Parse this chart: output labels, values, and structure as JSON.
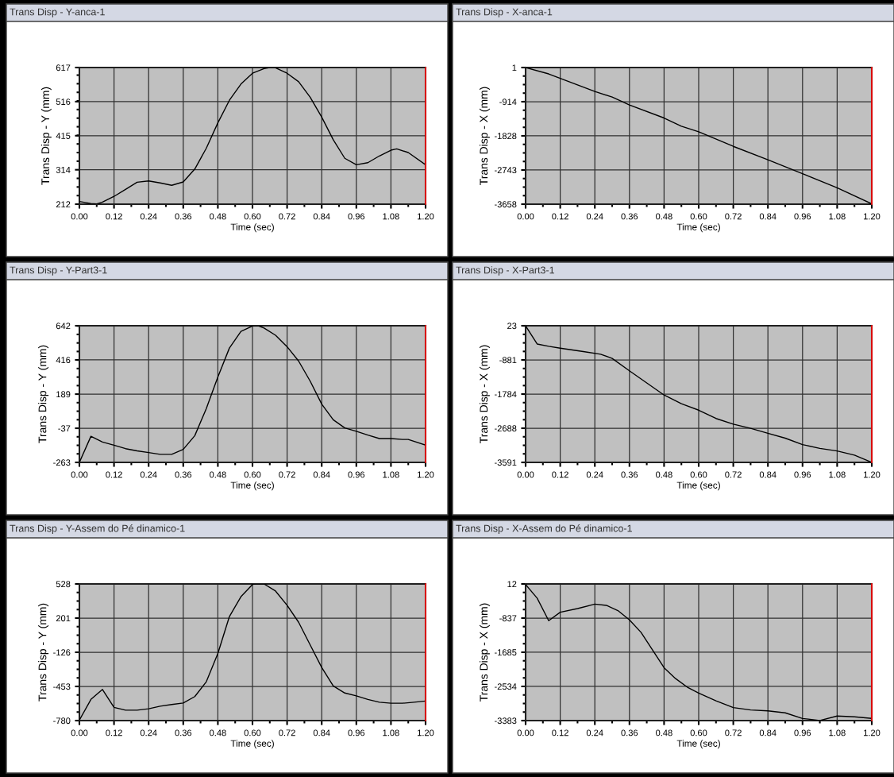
{
  "chart_data": [
    {
      "type": "line",
      "title": "Trans Disp - Y-anca-1",
      "xlabel": "Time (sec)",
      "ylabel": "Trans Disp - Y (mm)",
      "xlim": [
        0,
        1.2
      ],
      "ylim": [
        212,
        617
      ],
      "xticks": [
        {
          "value": 0,
          "label": "0.00"
        },
        0.12,
        0.24,
        0.36,
        0.48,
        {
          "value": 0.6,
          "label": "0.60"
        },
        0.72,
        0.84,
        0.96,
        1.08,
        {
          "value": 1.2,
          "label": "1.20"
        }
      ],
      "yticks": [
        212,
        314,
        415,
        516,
        617
      ],
      "grid": true,
      "ref_lines": [
        {
          "axis": "x",
          "value": 1.2,
          "color": "#ff0000"
        }
      ],
      "series": [
        {
          "color": "#000000",
          "x": [
            0,
            0.04,
            0.06,
            0.08,
            0.12,
            0.16,
            0.2,
            0.24,
            0.28,
            0.32,
            0.36,
            0.4,
            0.44,
            0.48,
            0.52,
            0.56,
            0.6,
            0.64,
            0.66,
            0.68,
            0.72,
            0.76,
            0.8,
            0.84,
            0.88,
            0.92,
            0.96,
            1.0,
            1.04,
            1.08,
            1.1,
            1.14,
            1.2
          ],
          "values": [
            220,
            214,
            213,
            218,
            235,
            256,
            277,
            281,
            275,
            268,
            278,
            316,
            378,
            453,
            520,
            568,
            600,
            614,
            617,
            616,
            600,
            575,
            529,
            470,
            403,
            348,
            329,
            335,
            355,
            372,
            376,
            365,
            329
          ]
        }
      ]
    },
    {
      "type": "line",
      "title": "Trans Disp - X-anca-1",
      "xlabel": "Time (sec)",
      "ylabel": "Trans Disp - X (mm)",
      "xlim": [
        0,
        1.2
      ],
      "ylim": [
        -3658,
        1
      ],
      "xticks": [
        {
          "value": 0,
          "label": "0.00"
        },
        0.12,
        0.24,
        0.36,
        0.48,
        {
          "value": 0.6,
          "label": "0.60"
        },
        0.72,
        0.84,
        0.96,
        1.08,
        {
          "value": 1.2,
          "label": "1.20"
        }
      ],
      "yticks": [
        -3658,
        -2743,
        -1828,
        -914,
        1
      ],
      "grid": true,
      "ref_lines": [
        {
          "axis": "x",
          "value": 1.2,
          "color": "#ff0000"
        }
      ],
      "series": [
        {
          "color": "#000000",
          "x": [
            0,
            0.08,
            0.12,
            0.24,
            0.3,
            0.36,
            0.48,
            0.54,
            0.6,
            0.72,
            0.84,
            0.96,
            1.08,
            1.2
          ],
          "values": [
            0,
            -170,
            -290,
            -640,
            -790,
            -1000,
            -1350,
            -1570,
            -1720,
            -2110,
            -2470,
            -2840,
            -3220,
            -3650
          ]
        }
      ]
    },
    {
      "type": "line",
      "title": "Trans Disp - Y-Part3-1",
      "xlabel": "Time (sec)",
      "ylabel": "Trans Disp - Y (mm)",
      "xlim": [
        0,
        1.2
      ],
      "ylim": [
        -263,
        642
      ],
      "xticks": [
        {
          "value": 0,
          "label": "0.00"
        },
        0.12,
        0.24,
        0.36,
        0.48,
        {
          "value": 0.6,
          "label": "0.60"
        },
        0.72,
        0.84,
        0.96,
        1.08,
        {
          "value": 1.2,
          "label": "1.20"
        }
      ],
      "yticks": [
        -263,
        -37,
        189,
        416,
        642
      ],
      "grid": true,
      "ref_lines": [
        {
          "axis": "x",
          "value": 1.2,
          "color": "#ff0000"
        }
      ],
      "series": [
        {
          "color": "#000000",
          "x": [
            0,
            0.04,
            0.08,
            0.12,
            0.16,
            0.2,
            0.24,
            0.28,
            0.32,
            0.36,
            0.4,
            0.44,
            0.48,
            0.52,
            0.56,
            0.6,
            0.62,
            0.64,
            0.68,
            0.72,
            0.76,
            0.8,
            0.84,
            0.88,
            0.92,
            0.96,
            1.0,
            1.04,
            1.08,
            1.12,
            1.14,
            1.2
          ],
          "values": [
            -263,
            -90,
            -128,
            -149,
            -172,
            -187,
            -198,
            -210,
            -210,
            -177,
            -86,
            94,
            303,
            494,
            604,
            640,
            642,
            627,
            579,
            503,
            408,
            275,
            123,
            19,
            -35,
            -57,
            -82,
            -105,
            -105,
            -111,
            -111,
            -149
          ]
        }
      ]
    },
    {
      "type": "line",
      "title": "Trans Disp - X-Part3-1",
      "xlabel": "Time (sec)",
      "ylabel": "Trans Disp - X (mm)",
      "xlim": [
        0,
        1.2
      ],
      "ylim": [
        -3591,
        23
      ],
      "xticks": [
        {
          "value": 0,
          "label": "0.00"
        },
        0.12,
        0.24,
        0.36,
        0.48,
        {
          "value": 0.6,
          "label": "0.60"
        },
        0.72,
        0.84,
        0.96,
        1.08,
        {
          "value": 1.2,
          "label": "1.20"
        }
      ],
      "yticks": [
        -3591,
        -2688,
        -1784,
        -881,
        23
      ],
      "grid": true,
      "ref_lines": [
        {
          "axis": "x",
          "value": 1.2,
          "color": "#ff0000"
        }
      ],
      "series": [
        {
          "color": "#000000",
          "x": [
            0,
            0.04,
            0.08,
            0.12,
            0.2,
            0.26,
            0.3,
            0.36,
            0.42,
            0.48,
            0.54,
            0.6,
            0.66,
            0.72,
            0.78,
            0.84,
            0.9,
            0.96,
            1.02,
            1.08,
            1.14,
            1.2
          ],
          "values": [
            20,
            -460,
            -520,
            -570,
            -660,
            -730,
            -840,
            -1170,
            -1490,
            -1810,
            -2040,
            -2210,
            -2430,
            -2580,
            -2690,
            -2820,
            -2950,
            -3120,
            -3220,
            -3290,
            -3400,
            -3590
          ]
        }
      ]
    },
    {
      "type": "line",
      "title": "Trans Disp - Y-Assem do Pé dinamico-1",
      "xlabel": "Time (sec)",
      "ylabel": "Trans Disp - Y (mm)",
      "xlim": [
        0,
        1.2
      ],
      "ylim": [
        -780,
        528
      ],
      "xticks": [
        {
          "value": 0,
          "label": "0.00"
        },
        0.12,
        0.24,
        0.36,
        0.48,
        {
          "value": 0.6,
          "label": "0.60"
        },
        0.72,
        0.84,
        0.96,
        1.08,
        {
          "value": 1.2,
          "label": "1.20"
        }
      ],
      "yticks": [
        -780,
        -453,
        -126,
        201,
        528
      ],
      "grid": true,
      "ref_lines": [
        {
          "axis": "x",
          "value": 1.2,
          "color": "#ff0000"
        }
      ],
      "series": [
        {
          "color": "#000000",
          "x": [
            0,
            0.04,
            0.08,
            0.12,
            0.16,
            0.2,
            0.24,
            0.28,
            0.32,
            0.36,
            0.4,
            0.44,
            0.48,
            0.52,
            0.56,
            0.6,
            0.61,
            0.64,
            0.68,
            0.72,
            0.76,
            0.8,
            0.84,
            0.88,
            0.92,
            0.96,
            1.0,
            1.04,
            1.08,
            1.12,
            1.16,
            1.2
          ],
          "values": [
            -775,
            -577,
            -482,
            -653,
            -680,
            -680,
            -667,
            -642,
            -626,
            -612,
            -550,
            -408,
            -137,
            216,
            406,
            523,
            528,
            528,
            460,
            324,
            161,
            -56,
            -271,
            -448,
            -516,
            -543,
            -577,
            -604,
            -614,
            -614,
            -604,
            -593
          ]
        }
      ]
    },
    {
      "type": "line",
      "title": "Trans Disp - X-Assem do Pé dinamico-1",
      "xlabel": "Time (sec)",
      "ylabel": "Trans Disp - X (mm)",
      "xlim": [
        0,
        1.2
      ],
      "ylim": [
        -3383,
        12
      ],
      "xticks": [
        {
          "value": 0,
          "label": "0.00"
        },
        0.12,
        0.24,
        0.36,
        0.48,
        {
          "value": 0.6,
          "label": "0.60"
        },
        0.72,
        0.84,
        0.96,
        1.08,
        {
          "value": 1.2,
          "label": "1.20"
        }
      ],
      "yticks": [
        -3383,
        -2534,
        -1685,
        -837,
        12
      ],
      "grid": true,
      "ref_lines": [
        {
          "axis": "x",
          "value": 1.2,
          "color": "#ff0000"
        }
      ],
      "series": [
        {
          "color": "#000000",
          "x": [
            0,
            0.04,
            0.08,
            0.12,
            0.18,
            0.24,
            0.28,
            0.32,
            0.36,
            0.4,
            0.44,
            0.48,
            0.52,
            0.56,
            0.6,
            0.66,
            0.72,
            0.78,
            0.84,
            0.9,
            0.96,
            1.02,
            1.08,
            1.14,
            1.2
          ],
          "values": [
            0,
            -340,
            -900,
            -690,
            -600,
            -490,
            -520,
            -650,
            -880,
            -1190,
            -1630,
            -2070,
            -2340,
            -2550,
            -2700,
            -2890,
            -3060,
            -3120,
            -3140,
            -3190,
            -3330,
            -3380,
            -3270,
            -3290,
            -3330
          ]
        }
      ]
    }
  ]
}
